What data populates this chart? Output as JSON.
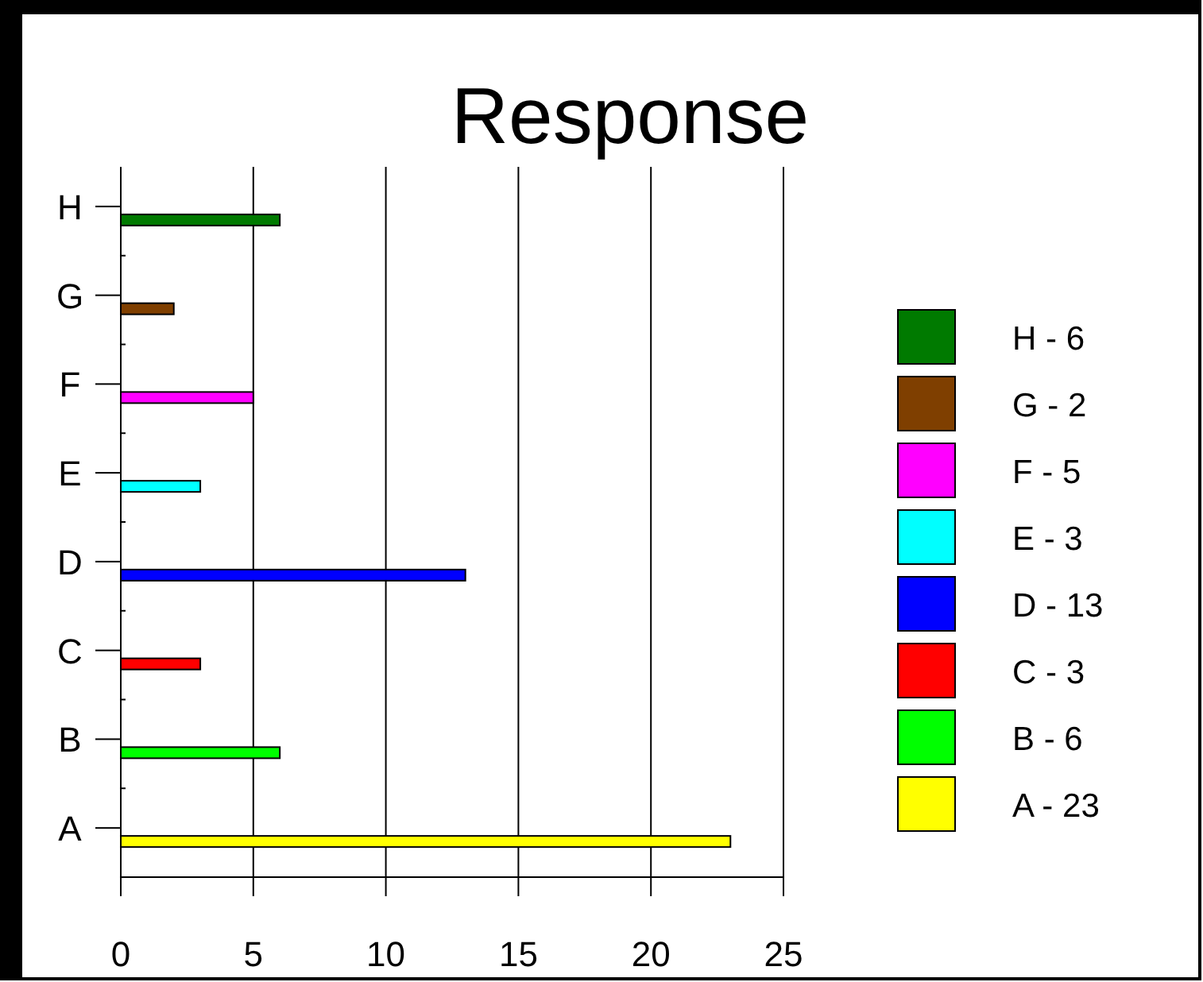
{
  "chart_data": {
    "type": "bar",
    "title": "Response",
    "orientation": "horizontal",
    "categories": [
      "H",
      "G",
      "F",
      "E",
      "D",
      "C",
      "B",
      "A"
    ],
    "series": [
      {
        "name": "H - 6",
        "color": "#007a00",
        "values": [
          6,
          null,
          null,
          null,
          null,
          null,
          null,
          null
        ]
      },
      {
        "name": "G - 2",
        "color": "#7f3f00",
        "values": [
          null,
          2,
          null,
          null,
          null,
          null,
          null,
          null
        ]
      },
      {
        "name": "F - 5",
        "color": "#ff00ff",
        "values": [
          null,
          null,
          5,
          null,
          null,
          null,
          null,
          null
        ]
      },
      {
        "name": "E - 3",
        "color": "#00ffff",
        "values": [
          null,
          null,
          null,
          3,
          null,
          null,
          null,
          null
        ]
      },
      {
        "name": "D - 13",
        "color": "#0000ff",
        "values": [
          null,
          null,
          null,
          null,
          13,
          null,
          null,
          null
        ]
      },
      {
        "name": "C - 3",
        "color": "#ff0000",
        "values": [
          null,
          null,
          null,
          null,
          null,
          3,
          null,
          null
        ]
      },
      {
        "name": "B - 6",
        "color": "#00ff00",
        "values": [
          null,
          null,
          null,
          null,
          null,
          null,
          6,
          null
        ]
      },
      {
        "name": "A - 23",
        "color": "#ffff00",
        "values": [
          null,
          null,
          null,
          null,
          null,
          null,
          null,
          23
        ]
      }
    ],
    "xlim": [
      0,
      25
    ],
    "xticks": [
      0,
      5,
      10,
      15,
      20,
      25
    ],
    "grid": "x",
    "legend": "right"
  }
}
